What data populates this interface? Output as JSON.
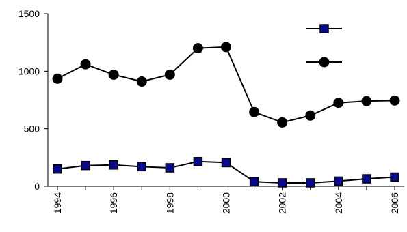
{
  "chart_data": {
    "type": "line",
    "title": "",
    "xlabel": "",
    "ylabel": "",
    "x": [
      1994,
      1995,
      1996,
      1997,
      1998,
      1999,
      2000,
      2001,
      2002,
      2003,
      2004,
      2005,
      2006
    ],
    "ylim": [
      0,
      1500
    ],
    "xlim": [
      1994,
      2006
    ],
    "y_ticks": [
      0,
      500,
      1000,
      1500
    ],
    "x_ticks": [
      1994,
      1996,
      1998,
      2000,
      2002,
      2004,
      2006
    ],
    "legend": "top-right",
    "grid": false,
    "series": [
      {
        "marker": "square",
        "color": "#0a0a8c",
        "values": [
          150,
          180,
          185,
          170,
          160,
          215,
          205,
          40,
          30,
          30,
          45,
          65,
          80
        ]
      },
      {
        "marker": "circle",
        "color": "#000000",
        "values": [
          935,
          1060,
          970,
          910,
          970,
          1200,
          1210,
          645,
          555,
          615,
          725,
          740,
          745
        ]
      }
    ]
  }
}
